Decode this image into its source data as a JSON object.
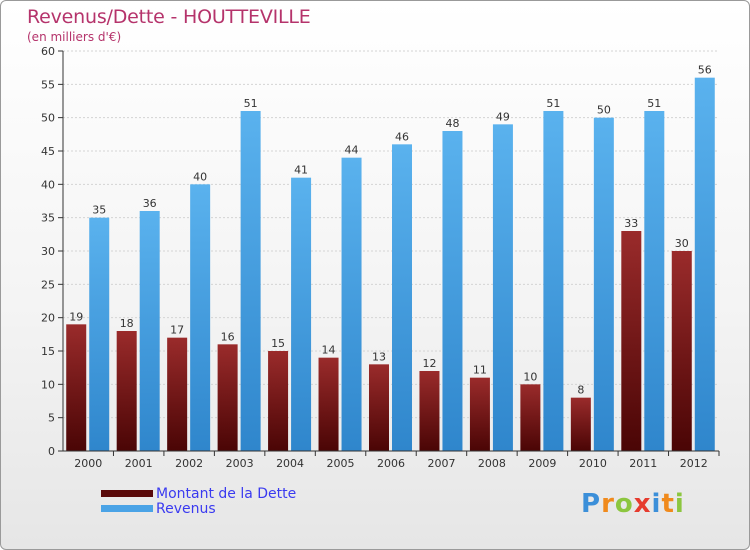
{
  "chart_data": {
    "type": "bar",
    "title": "Revenus/Dette - HOUTTEVILLE",
    "subtitle": "(en milliers d'€)",
    "categories": [
      "2000",
      "2001",
      "2002",
      "2003",
      "2004",
      "2005",
      "2006",
      "2007",
      "2008",
      "2009",
      "2010",
      "2011",
      "2012"
    ],
    "series": [
      {
        "name": "Montant de la Dette",
        "color": "#7a1a1a",
        "values": [
          19,
          18,
          17,
          16,
          15,
          14,
          13,
          12,
          11,
          10,
          8,
          33,
          30
        ]
      },
      {
        "name": "Revenus",
        "color": "#4aa3e6",
        "values": [
          35,
          36,
          40,
          51,
          41,
          44,
          46,
          48,
          49,
          51,
          50,
          51,
          56
        ]
      }
    ],
    "ylim": [
      0,
      60
    ],
    "yticks": [
      0,
      5,
      10,
      15,
      20,
      25,
      30,
      35,
      40,
      45,
      50,
      55,
      60
    ],
    "grid": true,
    "legend_position": "bottom-left"
  },
  "logo": {
    "letters": [
      "P",
      "r",
      "o",
      "x",
      "i",
      "t",
      "i"
    ]
  }
}
